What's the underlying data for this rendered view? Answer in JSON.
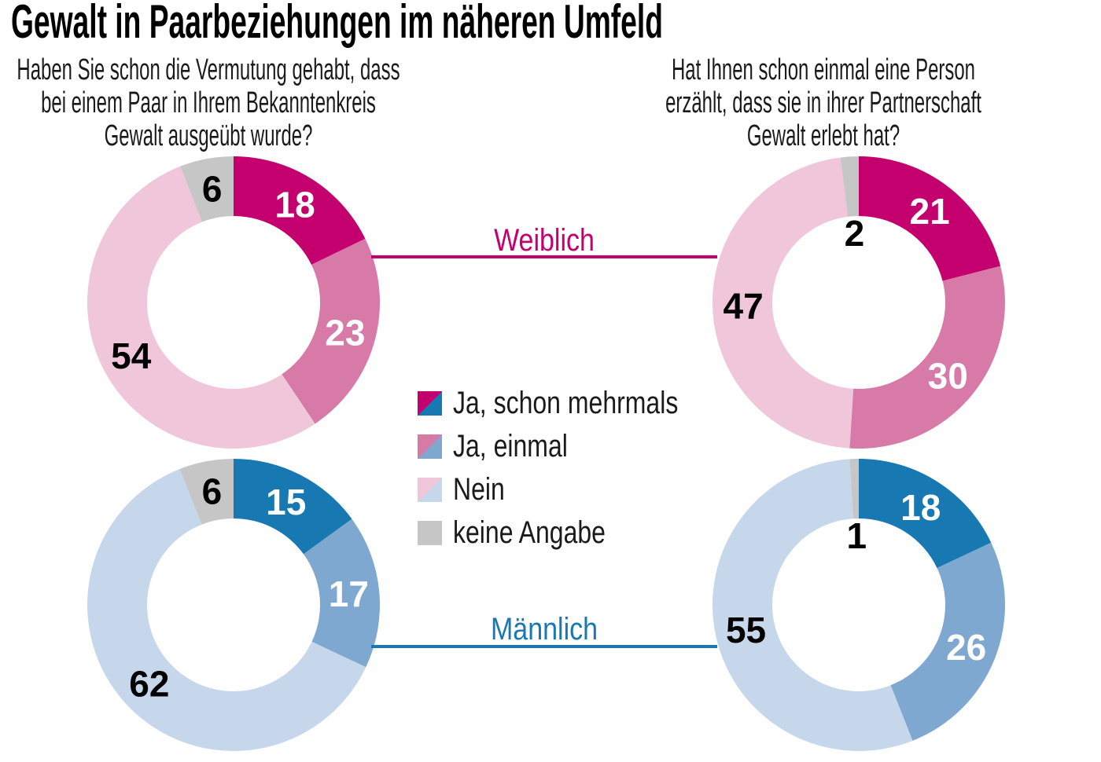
{
  "title": "Gewalt in Paarbeziehungen im näheren Umfeld",
  "questions": {
    "left": "Haben Sie schon die Vermutung gehabt, dass\nbei einem Paar in Ihrem Bekanntenkreis\nGewalt ausgeübt wurde?",
    "right": "Hat Ihnen schon einmal eine Person\nerzählt, dass sie in ihrer Partnerschaft\nGewalt erlebt hat?"
  },
  "groups": [
    {
      "label": "Weiblich",
      "color": "#c4006e"
    },
    {
      "label": "Männlich",
      "color": "#1878b1"
    }
  ],
  "legend": [
    {
      "label": "Ja, schon mehrmals",
      "female_color": "#c4006e",
      "male_color": "#1878b1"
    },
    {
      "label": "Ja, einmal",
      "female_color": "#d77aa8",
      "male_color": "#7fa8d1"
    },
    {
      "label": "Nein",
      "female_color": "#f0c6da",
      "male_color": "#c6d7ec"
    },
    {
      "label": "keine Angabe",
      "color": "#c6c6c6"
    }
  ],
  "chart_data": [
    {
      "type": "pie",
      "donut": true,
      "group": "Weiblich",
      "question": "Haben Sie schon die Vermutung gehabt, dass bei einem Paar in Ihrem Bekanntenkreis Gewalt ausgeübt wurde?",
      "categories": [
        "Ja, schon mehrmals",
        "Ja, einmal",
        "Nein",
        "keine Angabe"
      ],
      "values": [
        18,
        23,
        54,
        6
      ],
      "colors": [
        "#c4006e",
        "#d77aa8",
        "#f0c6da",
        "#c6c6c6"
      ],
      "label_colors": [
        "#ffffff",
        "#ffffff",
        "#000000",
        "#000000"
      ],
      "start_angle": 0,
      "direction": "clockwise"
    },
    {
      "type": "pie",
      "donut": true,
      "group": "Weiblich",
      "question": "Hat Ihnen schon einmal eine Person erzählt, dass sie in ihrer Partnerschaft Gewalt erlebt hat?",
      "categories": [
        "Ja, schon mehrmals",
        "Ja, einmal",
        "Nein",
        "keine Angabe"
      ],
      "values": [
        21,
        30,
        47,
        2
      ],
      "colors": [
        "#c4006e",
        "#d77aa8",
        "#f0c6da",
        "#c6c6c6"
      ],
      "label_colors": [
        "#ffffff",
        "#ffffff",
        "#000000",
        "#000000"
      ],
      "start_angle": 0,
      "direction": "clockwise"
    },
    {
      "type": "pie",
      "donut": true,
      "group": "Männlich",
      "question": "Haben Sie schon die Vermutung gehabt, dass bei einem Paar in Ihrem Bekanntenkreis Gewalt ausgeübt wurde?",
      "categories": [
        "Ja, schon mehrmals",
        "Ja, einmal",
        "Nein",
        "keine Angabe"
      ],
      "values": [
        15,
        17,
        62,
        6
      ],
      "colors": [
        "#1878b1",
        "#7fa8d1",
        "#c6d7ec",
        "#c6c6c6"
      ],
      "label_colors": [
        "#ffffff",
        "#ffffff",
        "#000000",
        "#000000"
      ],
      "start_angle": 0,
      "direction": "clockwise"
    },
    {
      "type": "pie",
      "donut": true,
      "group": "Männlich",
      "question": "Hat Ihnen schon einmal eine Person erzählt, dass sie in ihrer Partnerschaft Gewalt erlebt hat?",
      "categories": [
        "Ja, schon mehrmals",
        "Ja, einmal",
        "Nein",
        "keine Angabe"
      ],
      "values": [
        18,
        26,
        55,
        1
      ],
      "colors": [
        "#1878b1",
        "#7fa8d1",
        "#c6d7ec",
        "#c6c6c6"
      ],
      "label_colors": [
        "#ffffff",
        "#ffffff",
        "#000000",
        "#000000"
      ],
      "start_angle": 0,
      "direction": "clockwise"
    }
  ]
}
